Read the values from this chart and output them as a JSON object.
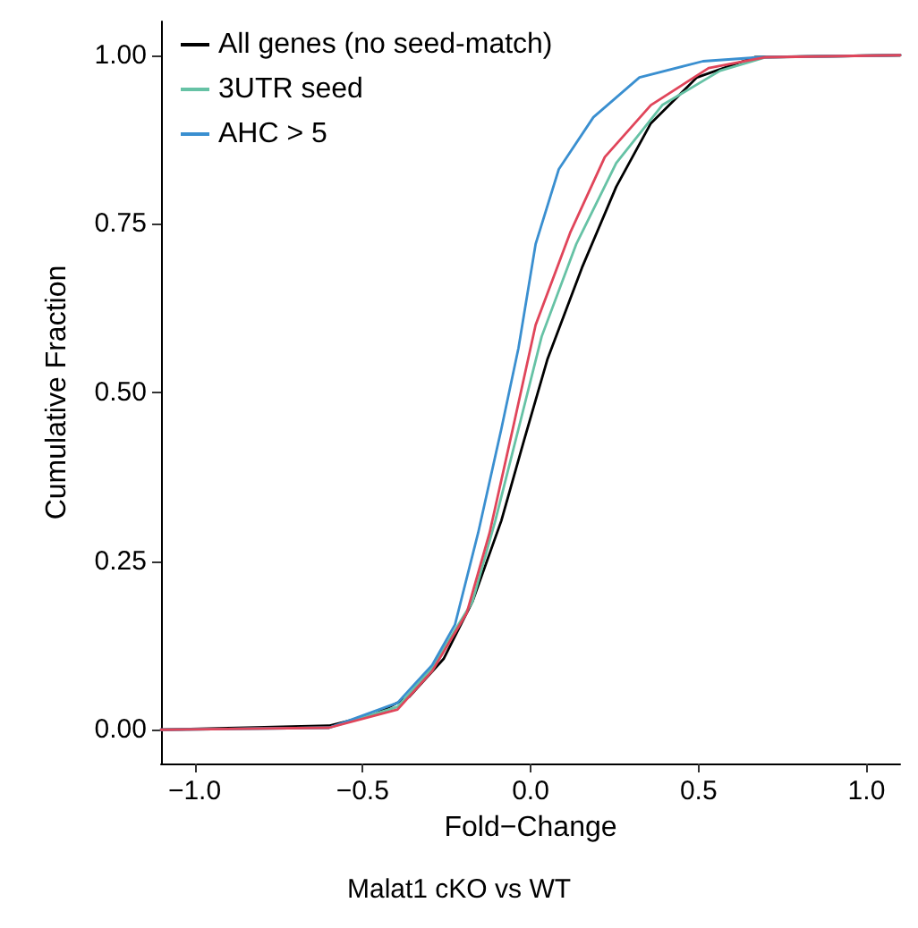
{
  "chart_data": {
    "type": "line",
    "xlabel": "Fold−Change",
    "ylabel": "Cumulative Fraction",
    "annotations": [
      "Malat1 cKO vs WT"
    ],
    "xlim": [
      -1.1,
      1.1
    ],
    "ylim": [
      -0.05,
      1.05
    ],
    "xticks": [
      {
        "value": -1,
        "label": "−1.0"
      },
      {
        "value": -0.5,
        "label": "−0.5"
      },
      {
        "value": 0,
        "label": "0.0"
      },
      {
        "value": 0.5,
        "label": "0.5"
      },
      {
        "value": 1,
        "label": "1.0"
      }
    ],
    "yticks": [
      {
        "value": 0,
        "label": "0.00"
      },
      {
        "value": 0.25,
        "label": "0.25"
      },
      {
        "value": 0.5,
        "label": "0.50"
      },
      {
        "value": 0.75,
        "label": "0.75"
      },
      {
        "value": 1,
        "label": "1.00"
      }
    ],
    "grid": false,
    "legend": "top left",
    "marker": "none",
    "line_style": "solid",
    "series": [
      {
        "name": "All genes (no seed-match)",
        "color": "#000000",
        "x": [
          -1.1,
          -0.6,
          -0.464,
          -0.361,
          -0.259,
          -0.173,
          -0.087,
          -0.019,
          0.05,
          0.153,
          0.255,
          0.358,
          0.495,
          0.667,
          1.1
        ],
        "values": [
          0,
          0.006,
          0.023,
          0.049,
          0.105,
          0.19,
          0.31,
          0.43,
          0.549,
          0.685,
          0.805,
          0.899,
          0.967,
          0.997,
          1
        ]
      },
      {
        "name": "3UTR seed",
        "color": "#66c2a5",
        "x": [
          -1.1,
          -0.6,
          -0.396,
          -0.293,
          -0.173,
          -0.105,
          -0.036,
          0.033,
          0.136,
          0.255,
          0.392,
          0.564,
          0.701,
          1.1
        ],
        "values": [
          0,
          0.003,
          0.034,
          0.092,
          0.19,
          0.31,
          0.446,
          0.583,
          0.72,
          0.84,
          0.926,
          0.977,
          0.997,
          1
        ]
      },
      {
        "name": "AHC > 5",
        "color": "#3a8fd0",
        "x": [
          -1.1,
          -0.6,
          -0.396,
          -0.293,
          -0.225,
          -0.156,
          -0.087,
          -0.036,
          0.015,
          0.084,
          0.187,
          0.324,
          0.513,
          0.684,
          1.1
        ],
        "values": [
          0,
          0.003,
          0.04,
          0.096,
          0.156,
          0.292,
          0.446,
          0.566,
          0.72,
          0.831,
          0.908,
          0.967,
          0.991,
          0.997,
          1
        ]
      },
      {
        "color": "#e0455a",
        "x": [
          -1.1,
          -0.6,
          -0.396,
          -0.293,
          -0.19,
          -0.122,
          -0.053,
          0.015,
          0.118,
          0.221,
          0.358,
          0.53,
          0.701,
          1.1
        ],
        "values": [
          0,
          0.003,
          0.03,
          0.087,
          0.173,
          0.292,
          0.446,
          0.6,
          0.737,
          0.849,
          0.926,
          0.981,
          0.997,
          1
        ]
      }
    ]
  }
}
